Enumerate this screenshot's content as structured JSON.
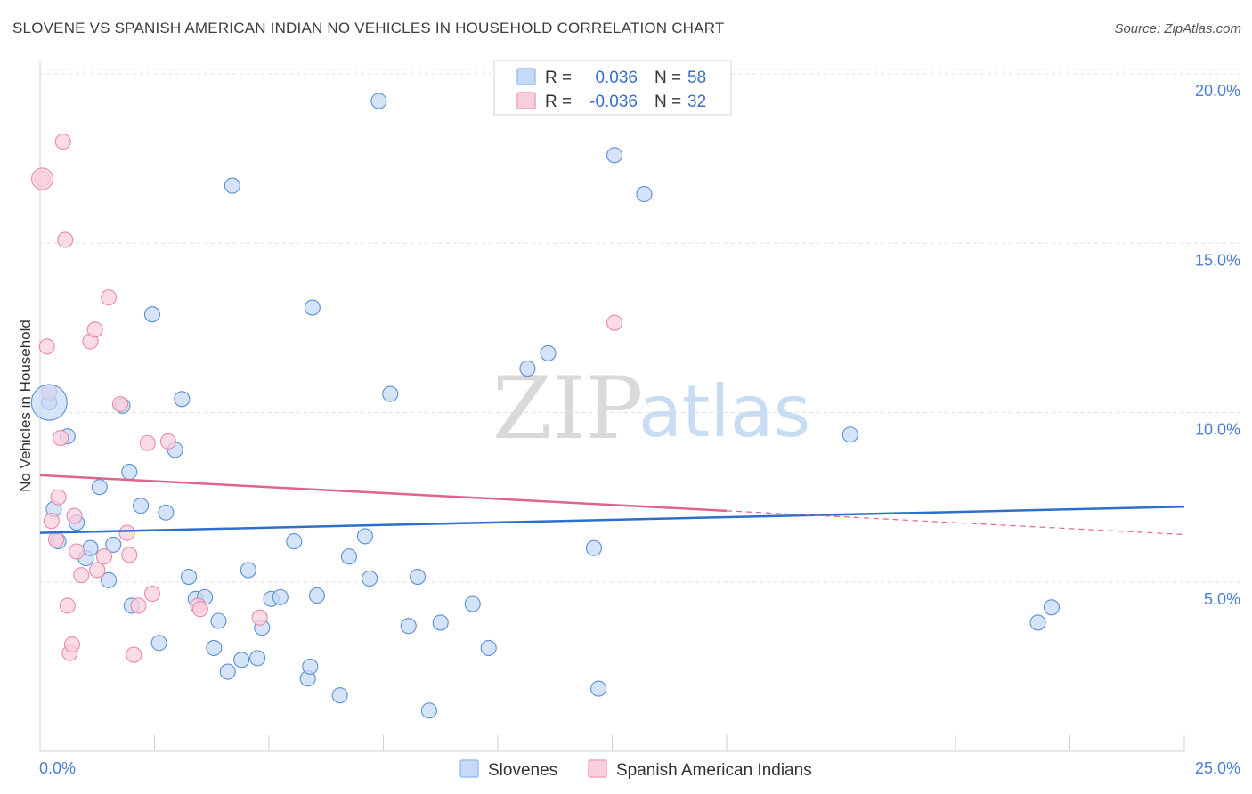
{
  "header": {
    "title": "SLOVENE VS SPANISH AMERICAN INDIAN NO VEHICLES IN HOUSEHOLD CORRELATION CHART",
    "source": "Source: ZipAtlas.com"
  },
  "watermark": {
    "part1": "ZIP",
    "part2": "atlas"
  },
  "legend": {
    "rows": [
      {
        "r_label": "R =",
        "r_value": "0.036",
        "n_label": "N =",
        "n_value": "58",
        "color": "#9cc0ee",
        "fill": "#c5daf6"
      },
      {
        "r_label": "R =",
        "r_value": "-0.036",
        "n_label": "N =",
        "n_value": "32",
        "color": "#f0a3ba",
        "fill": "#f9cfdc"
      }
    ]
  },
  "bottom_legend": [
    "Slovenes",
    "Spanish American Indians"
  ],
  "chart_data": {
    "type": "scatter",
    "title": "SLOVENE VS SPANISH AMERICAN INDIAN NO VEHICLES IN HOUSEHOLD CORRELATION CHART",
    "xlabel": "",
    "ylabel": "No Vehicles in Household",
    "xlim": [
      0,
      25
    ],
    "ylim": [
      0,
      20.5
    ],
    "x_tick_labels": [
      "0.0%",
      "25.0%"
    ],
    "y_ticks": [
      5,
      10,
      15,
      20
    ],
    "y_tick_labels": [
      "5.0%",
      "10.0%",
      "15.0%",
      "20.0%"
    ],
    "grid": true,
    "series": [
      {
        "name": "Slovenes",
        "color": "#5b90d6",
        "fill": "#c5daf6",
        "trend": {
          "x": [
            0,
            25
          ],
          "y": [
            6.45,
            7.22
          ],
          "color": "#2f6fcc"
        },
        "points": [
          [
            0.2,
            10.3
          ],
          [
            0.3,
            7.15
          ],
          [
            0.4,
            6.2
          ],
          [
            0.6,
            9.3
          ],
          [
            0.8,
            6.75
          ],
          [
            1.0,
            5.7
          ],
          [
            1.1,
            6.0
          ],
          [
            1.3,
            7.8
          ],
          [
            1.5,
            5.05
          ],
          [
            1.6,
            6.1
          ],
          [
            1.8,
            10.2
          ],
          [
            1.95,
            8.25
          ],
          [
            2.0,
            4.3
          ],
          [
            2.2,
            7.25
          ],
          [
            2.45,
            12.9
          ],
          [
            2.6,
            3.2
          ],
          [
            2.75,
            7.05
          ],
          [
            2.95,
            8.9
          ],
          [
            3.1,
            10.4
          ],
          [
            3.25,
            5.15
          ],
          [
            3.4,
            4.5
          ],
          [
            3.6,
            4.55
          ],
          [
            3.8,
            3.05
          ],
          [
            3.9,
            3.85
          ],
          [
            4.1,
            2.35
          ],
          [
            4.2,
            16.7
          ],
          [
            4.4,
            2.7
          ],
          [
            4.55,
            5.35
          ],
          [
            4.75,
            2.75
          ],
          [
            4.85,
            3.65
          ],
          [
            5.05,
            4.5
          ],
          [
            5.25,
            4.55
          ],
          [
            5.55,
            6.2
          ],
          [
            5.85,
            2.15
          ],
          [
            5.9,
            2.5
          ],
          [
            5.95,
            13.1
          ],
          [
            6.05,
            4.6
          ],
          [
            6.55,
            1.65
          ],
          [
            6.75,
            5.75
          ],
          [
            7.1,
            6.35
          ],
          [
            7.2,
            5.1
          ],
          [
            7.4,
            19.2
          ],
          [
            7.65,
            10.55
          ],
          [
            8.05,
            3.7
          ],
          [
            8.25,
            5.15
          ],
          [
            8.5,
            1.2
          ],
          [
            8.75,
            3.8
          ],
          [
            9.45,
            4.35
          ],
          [
            9.8,
            3.05
          ],
          [
            10.65,
            11.3
          ],
          [
            11.1,
            11.75
          ],
          [
            12.1,
            6.0
          ],
          [
            12.2,
            1.85
          ],
          [
            12.55,
            17.6
          ],
          [
            13.2,
            16.45
          ],
          [
            17.7,
            9.35
          ],
          [
            21.8,
            3.8
          ],
          [
            22.1,
            4.25
          ]
        ]
      },
      {
        "name": "Spanish American Indians",
        "color": "#e98aa8",
        "fill": "#f9cfdc",
        "trend": {
          "x": [
            0,
            15
          ],
          "y": [
            8.15,
            7.1
          ],
          "dashed_x": [
            15,
            25
          ],
          "dashed_y": [
            7.1,
            6.4
          ],
          "color": "#e0648e"
        },
        "points": [
          [
            0.05,
            16.9
          ],
          [
            0.15,
            11.95
          ],
          [
            0.2,
            10.6
          ],
          [
            0.25,
            6.8
          ],
          [
            0.35,
            6.25
          ],
          [
            0.4,
            7.5
          ],
          [
            0.45,
            9.25
          ],
          [
            0.5,
            18.0
          ],
          [
            0.55,
            15.1
          ],
          [
            0.6,
            4.3
          ],
          [
            0.65,
            2.9
          ],
          [
            0.7,
            3.15
          ],
          [
            0.75,
            6.95
          ],
          [
            0.8,
            5.9
          ],
          [
            0.9,
            5.2
          ],
          [
            1.1,
            12.1
          ],
          [
            1.2,
            12.45
          ],
          [
            1.25,
            5.35
          ],
          [
            1.4,
            5.75
          ],
          [
            1.5,
            13.4
          ],
          [
            1.75,
            10.25
          ],
          [
            1.9,
            6.45
          ],
          [
            1.95,
            5.8
          ],
          [
            2.05,
            2.85
          ],
          [
            2.15,
            4.3
          ],
          [
            2.35,
            9.1
          ],
          [
            2.45,
            4.65
          ],
          [
            2.8,
            9.15
          ],
          [
            3.45,
            4.3
          ],
          [
            3.5,
            4.2
          ],
          [
            4.8,
            3.95
          ],
          [
            12.55,
            12.65
          ]
        ]
      }
    ]
  }
}
